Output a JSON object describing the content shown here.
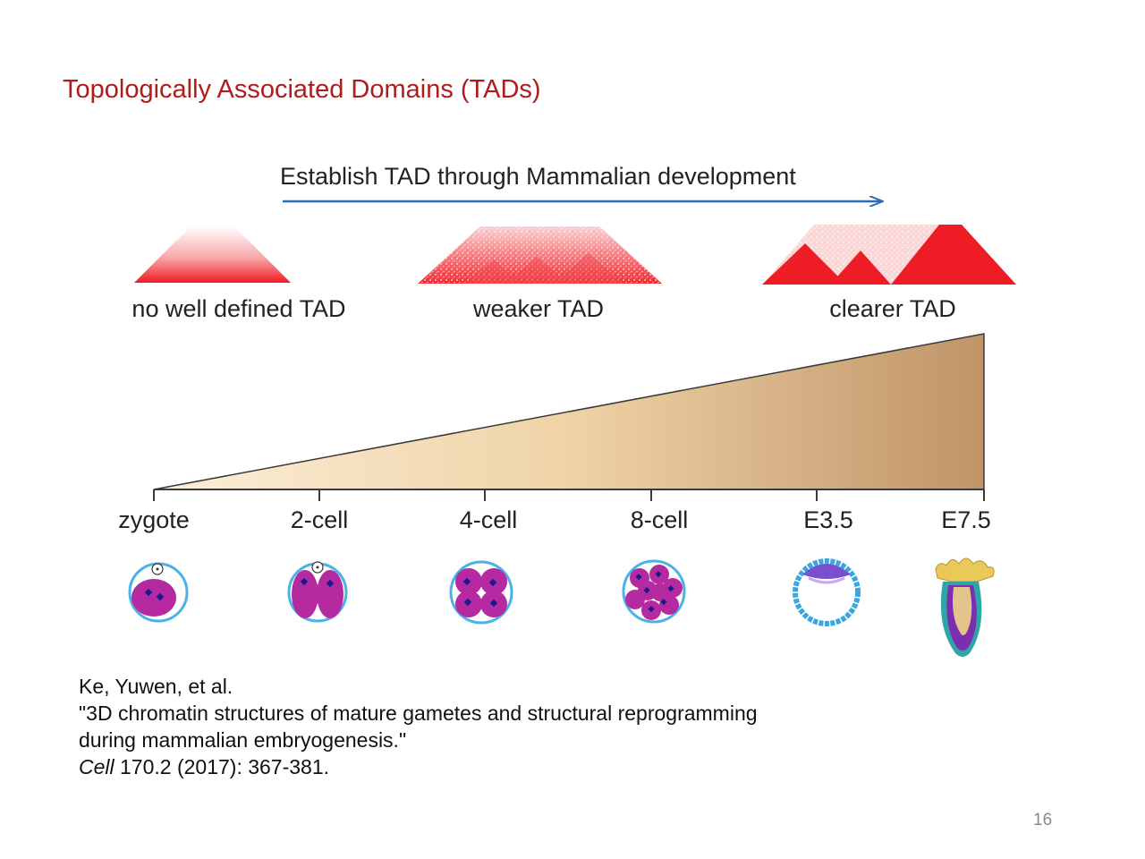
{
  "slide": {
    "title": "Topologically Associated Domains (TADs)",
    "page_number": "16"
  },
  "figure": {
    "arrow_label": "Establish TAD through Mammalian development",
    "tad_stages": [
      {
        "label": "no well defined TAD"
      },
      {
        "label": "weaker TAD"
      },
      {
        "label": "clearer TAD"
      }
    ],
    "timeline": [
      "zygote",
      "2-cell",
      "4-cell",
      "8-cell",
      "E3.5",
      "E7.5"
    ],
    "colors": {
      "tad_red": "#ee1c24",
      "arrow_blue": "#2a6db5",
      "wedge_light": "#f8e6c4",
      "wedge_dark": "#bf9468",
      "cell_magenta": "#b52aa0",
      "zona_blue": "#4ab2e8",
      "nucleus_navy": "#1a1a8c"
    }
  },
  "citation": {
    "authors": "Ke, Yuwen, et al.",
    "title_line1": "\"3D chromatin structures of mature gametes and structural reprogramming",
    "title_line2": "during mammalian embryogenesis.\"",
    "journal": "Cell",
    "details": " 170.2 (2017): 367-381."
  }
}
